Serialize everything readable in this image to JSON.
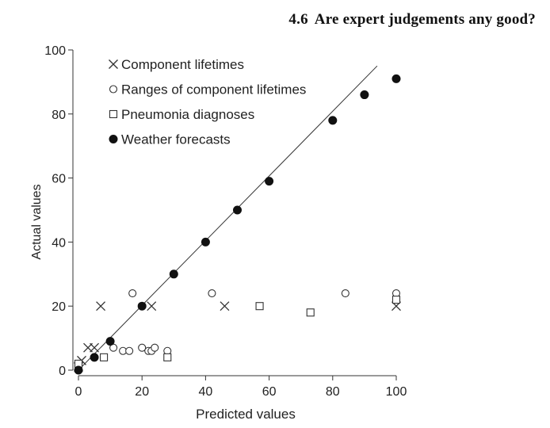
{
  "header": {
    "section_number": "4.6",
    "section_title": "Are expert judgements any good?"
  },
  "chart_data": {
    "type": "scatter",
    "title": "",
    "xlabel": "Predicted values",
    "ylabel": "Actual values",
    "xlim": [
      0,
      100
    ],
    "ylim": [
      0,
      100
    ],
    "xticks": [
      0,
      20,
      40,
      60,
      80,
      100
    ],
    "yticks": [
      0,
      20,
      40,
      60,
      80,
      100
    ],
    "grid": false,
    "legend_position": "top-left",
    "reference_line": {
      "x": [
        0,
        94
      ],
      "y": [
        0,
        95
      ]
    },
    "series": [
      {
        "name": "Component lifetimes",
        "marker": "x",
        "points": [
          [
            0,
            1
          ],
          [
            1,
            3
          ],
          [
            3,
            7
          ],
          [
            5,
            7
          ],
          [
            7,
            20
          ],
          [
            23,
            20
          ],
          [
            46,
            20
          ],
          [
            100,
            20
          ]
        ]
      },
      {
        "name": "Ranges of component lifetimes",
        "marker": "circle-open",
        "points": [
          [
            11,
            7
          ],
          [
            14,
            6
          ],
          [
            16,
            6
          ],
          [
            17,
            24
          ],
          [
            20,
            7
          ],
          [
            22,
            6
          ],
          [
            23,
            6
          ],
          [
            24,
            7
          ],
          [
            28,
            6
          ],
          [
            42,
            24
          ],
          [
            84,
            24
          ],
          [
            100,
            24
          ]
        ]
      },
      {
        "name": "Pneumonia diagnoses",
        "marker": "square-open",
        "points": [
          [
            0,
            2
          ],
          [
            8,
            4
          ],
          [
            28,
            4
          ],
          [
            57,
            20
          ],
          [
            73,
            18
          ],
          [
            100,
            22
          ]
        ]
      },
      {
        "name": "Weather forecasts",
        "marker": "circle-filled",
        "points": [
          [
            0,
            0
          ],
          [
            5,
            4
          ],
          [
            10,
            9
          ],
          [
            20,
            20
          ],
          [
            30,
            30
          ],
          [
            40,
            40
          ],
          [
            50,
            50
          ],
          [
            60,
            59
          ],
          [
            80,
            78
          ],
          [
            90,
            86
          ],
          [
            100,
            91
          ]
        ]
      }
    ]
  }
}
